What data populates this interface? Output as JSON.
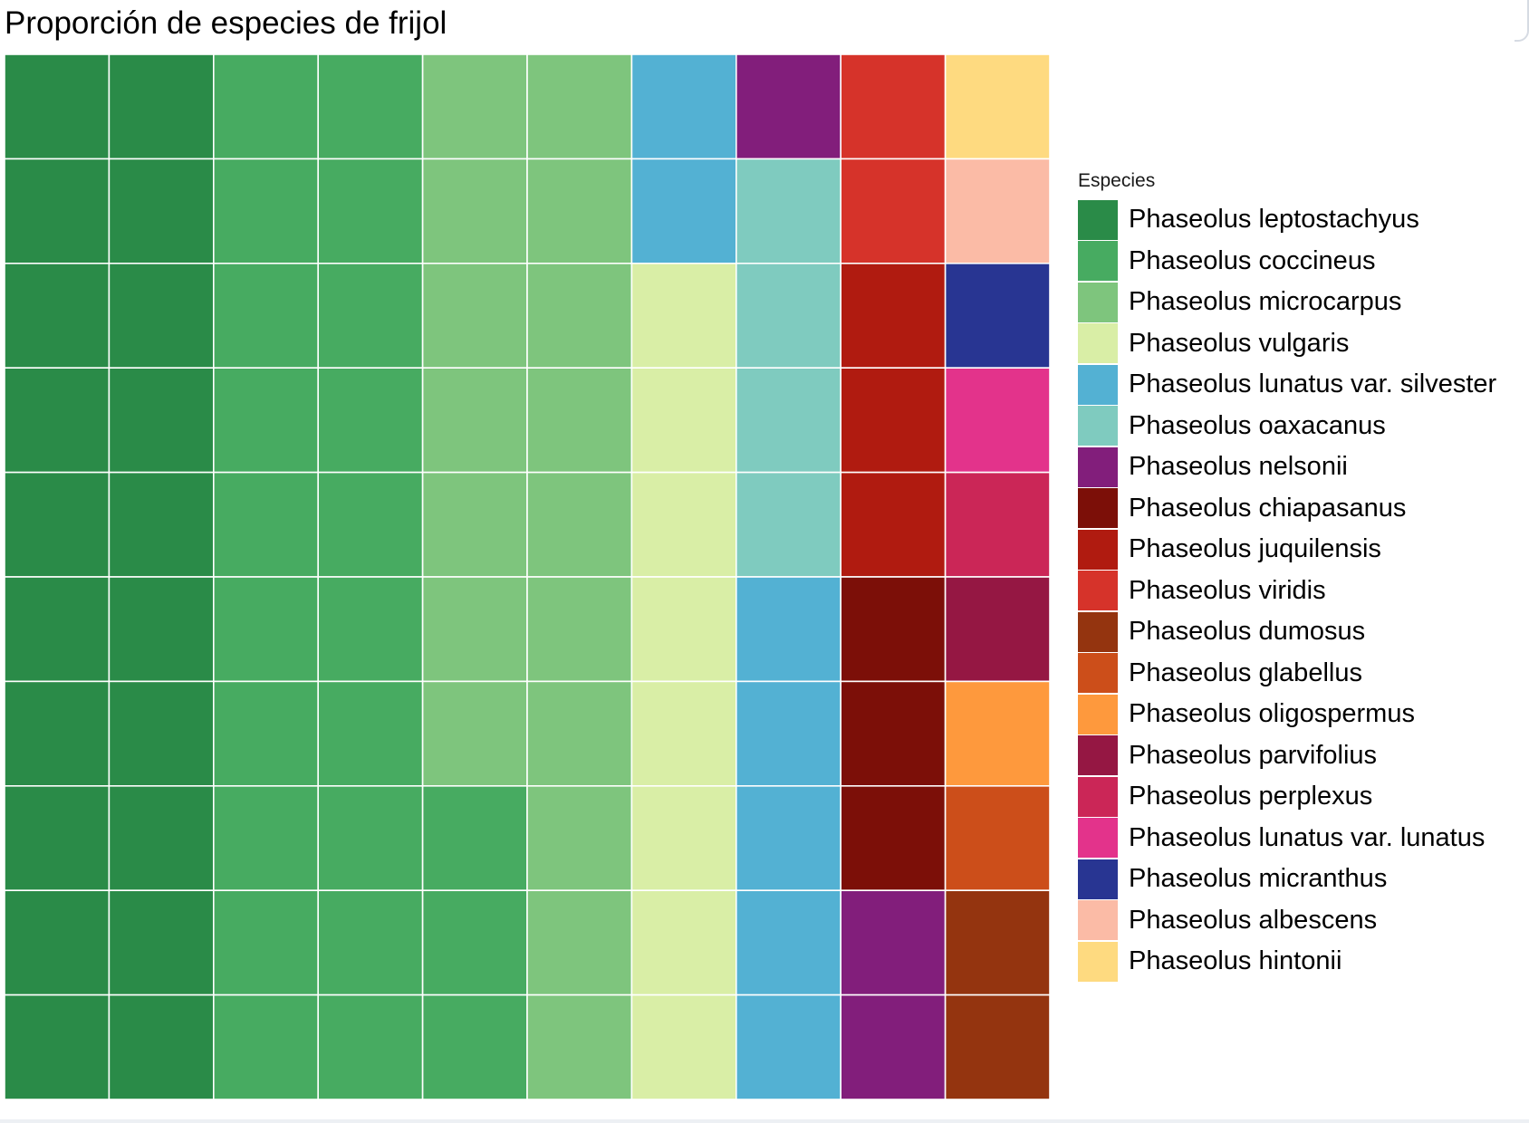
{
  "chart_data": {
    "type": "waffle",
    "title": "Proporción de especies de frijol",
    "legend_title": "Especies",
    "legend_position": "right",
    "grid_rows": 10,
    "grid_cols": 10,
    "fill_order": "column-major, top to bottom, left to right",
    "series": [
      {
        "name": "Phaseolus leptostachyus",
        "value": 20,
        "color": "#2a8b48"
      },
      {
        "name": "Phaseolus coccineus",
        "value": 23,
        "color": "#47ab61"
      },
      {
        "name": "Phaseolus microcarpus",
        "value": 17,
        "color": "#7ec57d"
      },
      {
        "name": "Phaseolus vulgaris",
        "value": 8,
        "color": "#d9eea6"
      },
      {
        "name": "Phaseolus lunatus var. silvester",
        "value": 7,
        "color": "#53b1d3"
      },
      {
        "name": "Phaseolus oaxacanus",
        "value": 4,
        "color": "#7fcbbf"
      },
      {
        "name": "Phaseolus nelsonii",
        "value": 3,
        "color": "#821e7b"
      },
      {
        "name": "Phaseolus chiapasanus",
        "value": 3,
        "color": "#7c0f08"
      },
      {
        "name": "Phaseolus juquilensis",
        "value": 3,
        "color": "#b01b10"
      },
      {
        "name": "Phaseolus viridis",
        "value": 2,
        "color": "#d6332a"
      },
      {
        "name": "Phaseolus dumosus",
        "value": 2,
        "color": "#94340f"
      },
      {
        "name": "Phaseolus glabellus",
        "value": 1,
        "color": "#cc4e1a"
      },
      {
        "name": "Phaseolus oligospermus",
        "value": 1,
        "color": "#fe993d"
      },
      {
        "name": "Phaseolus parvifolius",
        "value": 1,
        "color": "#951743"
      },
      {
        "name": "Phaseolus perplexus",
        "value": 1,
        "color": "#cb2657"
      },
      {
        "name": "Phaseolus lunatus var. lunatus",
        "value": 1,
        "color": "#e3338b"
      },
      {
        "name": "Phaseolus micranthus",
        "value": 1,
        "color": "#283592"
      },
      {
        "name": "Phaseolus albescens",
        "value": 1,
        "color": "#fbbba6"
      },
      {
        "name": "Phaseolus hintonii",
        "value": 1,
        "color": "#feda80"
      }
    ],
    "cells": [
      [
        0,
        0,
        1,
        1,
        2,
        2,
        4,
        6,
        9,
        18
      ],
      [
        0,
        0,
        1,
        1,
        2,
        2,
        4,
        5,
        9,
        17
      ],
      [
        0,
        0,
        1,
        1,
        2,
        2,
        3,
        5,
        8,
        16
      ],
      [
        0,
        0,
        1,
        1,
        2,
        2,
        3,
        5,
        8,
        15
      ],
      [
        0,
        0,
        1,
        1,
        2,
        2,
        3,
        5,
        8,
        14
      ],
      [
        0,
        0,
        1,
        1,
        2,
        2,
        3,
        4,
        7,
        13
      ],
      [
        0,
        0,
        1,
        1,
        2,
        2,
        3,
        4,
        7,
        12
      ],
      [
        0,
        0,
        1,
        1,
        1,
        2,
        3,
        4,
        7,
        11
      ],
      [
        0,
        0,
        1,
        1,
        1,
        2,
        3,
        4,
        6,
        10
      ],
      [
        0,
        0,
        1,
        1,
        1,
        2,
        3,
        4,
        6,
        10
      ]
    ]
  }
}
